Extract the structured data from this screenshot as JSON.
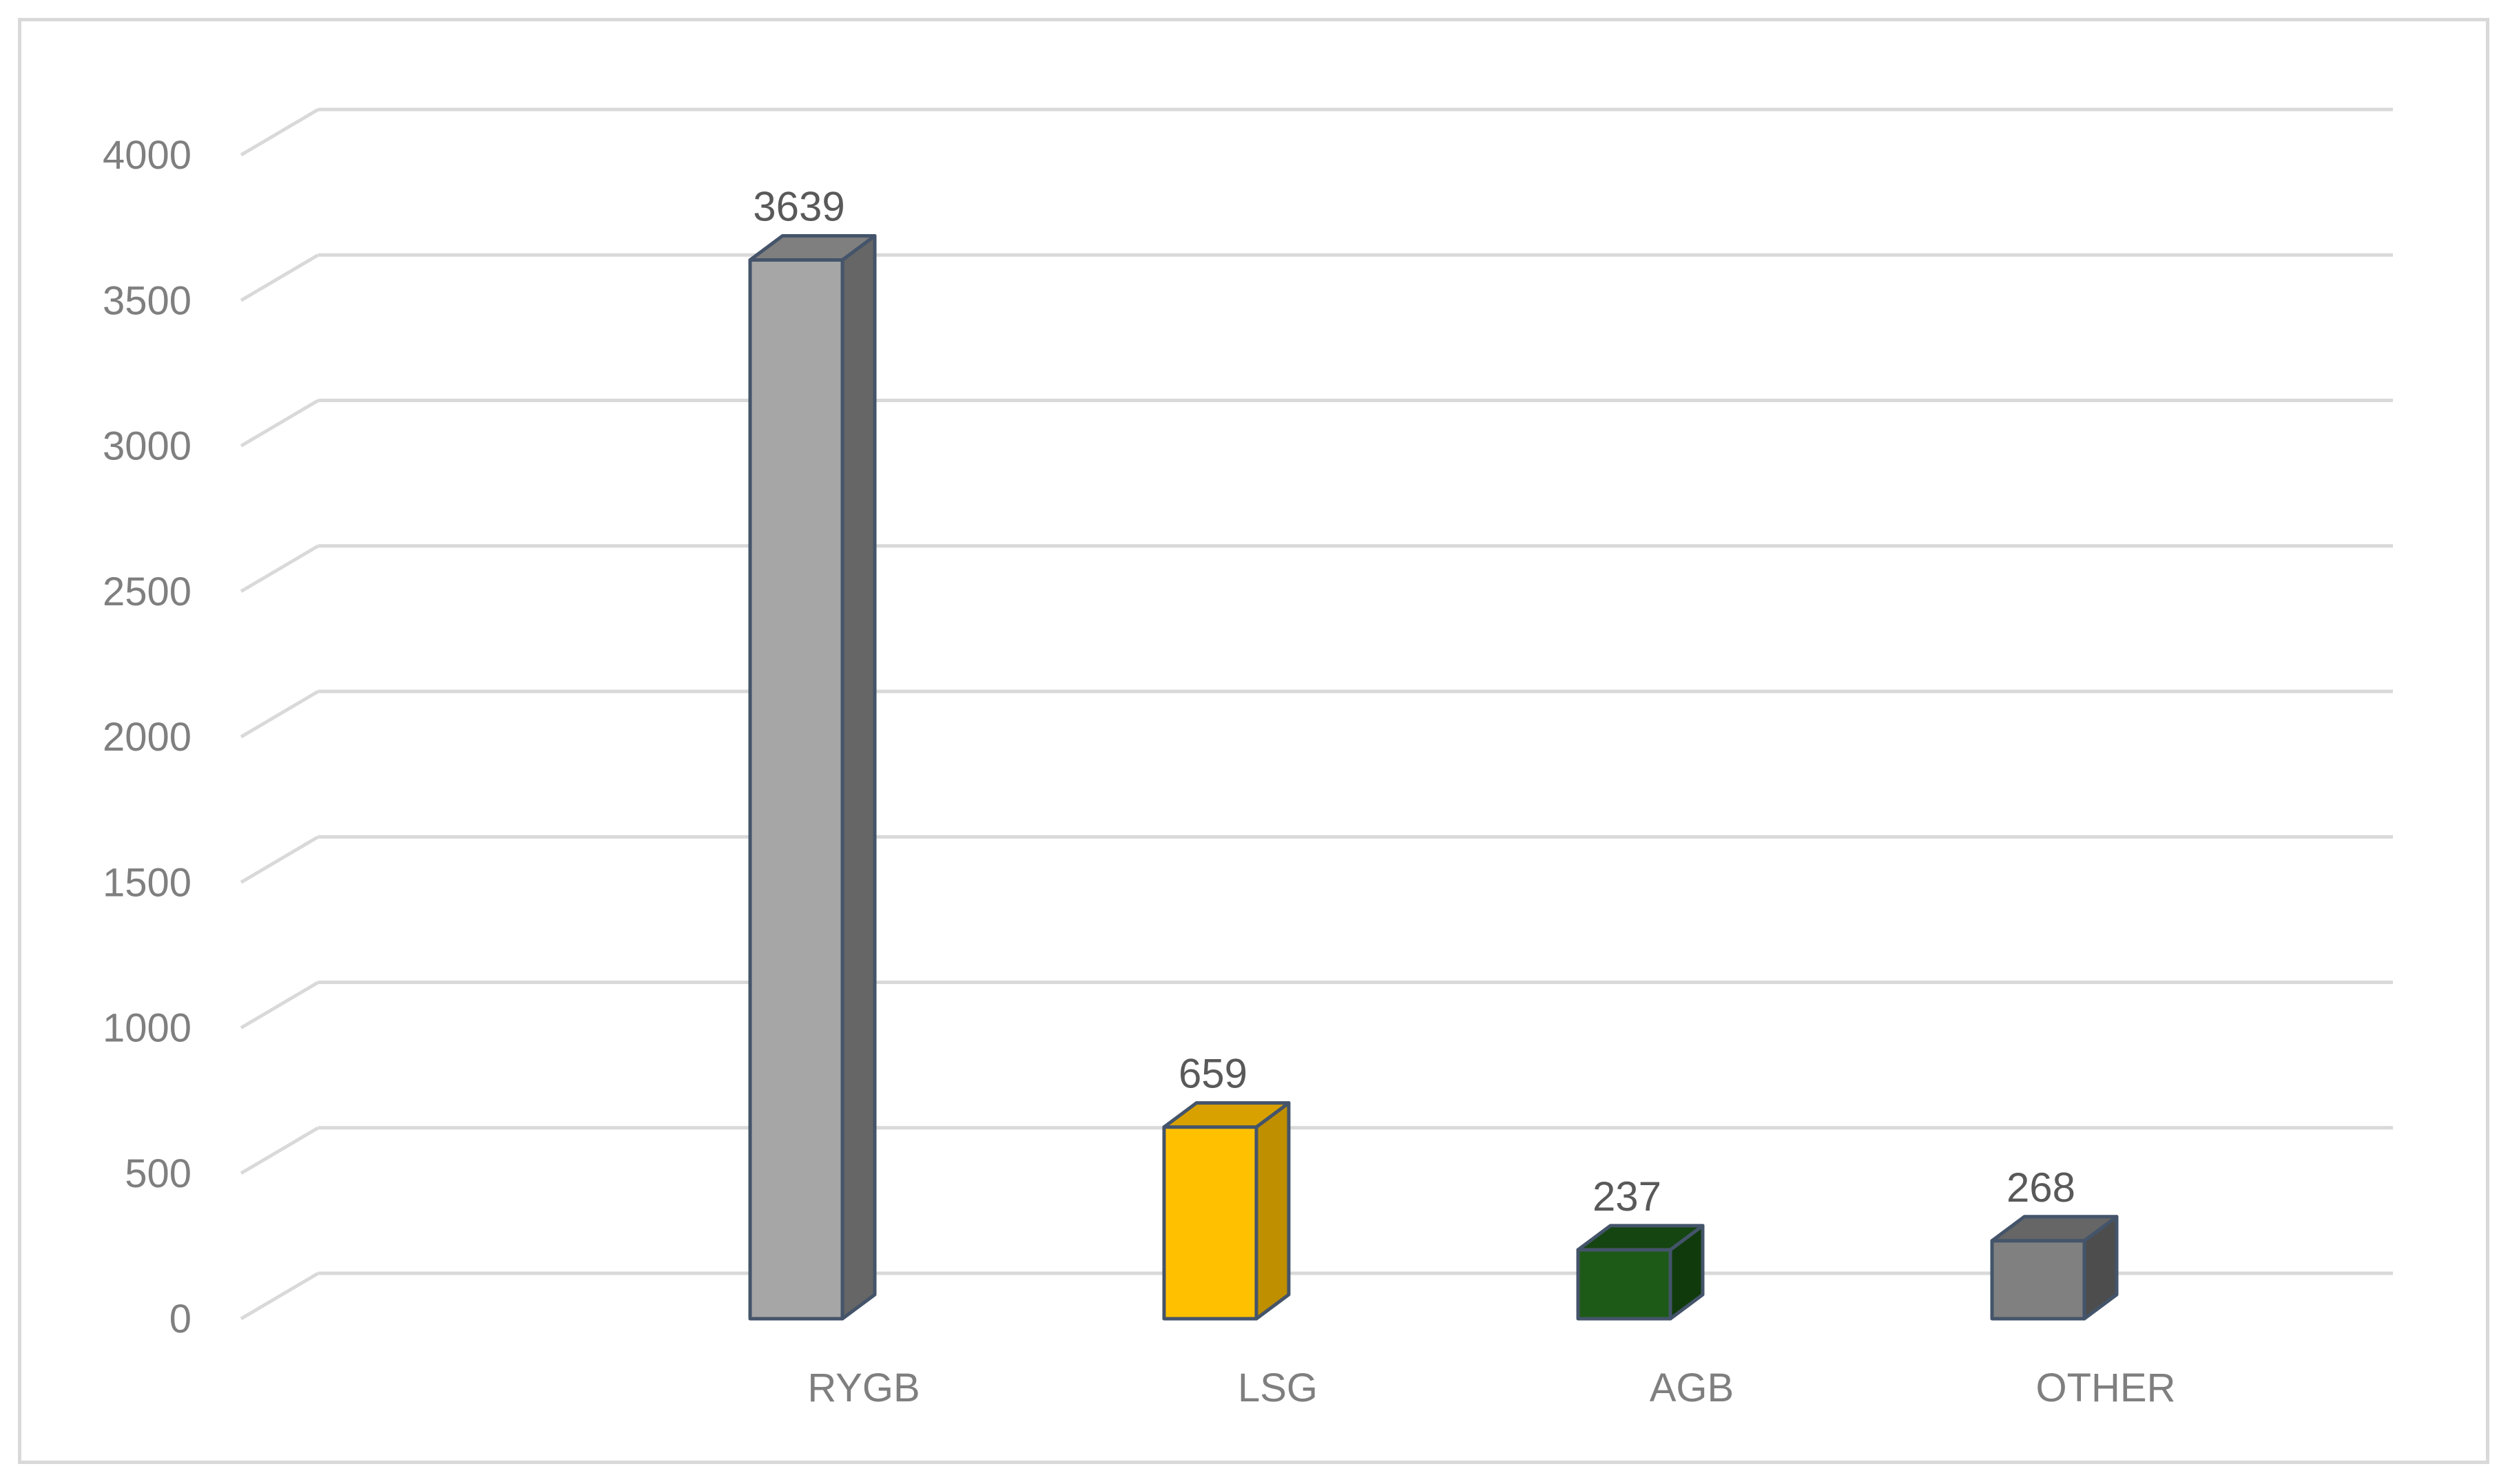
{
  "chart_data": {
    "type": "bar",
    "style": "3d-column",
    "categories": [
      "RYGB",
      "LSG",
      "AGB",
      "OTHER"
    ],
    "values": [
      3639,
      659,
      237,
      268
    ],
    "value_labels": [
      "3639",
      "659",
      "237",
      "268"
    ],
    "ylim": [
      0,
      4000
    ],
    "yticks": [
      "0",
      "500",
      "1000",
      "1500",
      "2000",
      "2500",
      "3000",
      "3500",
      "4000"
    ],
    "grid": true,
    "legend": "none",
    "title": "",
    "xlabel": "",
    "ylabel": "",
    "colors": [
      {
        "front": "#a6a6a6",
        "side": "#666666",
        "top": "#7f7f7f"
      },
      {
        "front": "#ffc000",
        "side": "#bf8f00",
        "top": "#d9a100"
      },
      {
        "front": "#1e5a17",
        "side": "#103a0c",
        "top": "#154510"
      },
      {
        "front": "#808080",
        "side": "#4d4d4d",
        "top": "#666666"
      }
    ],
    "outline_color": "#44546a",
    "gridline_color": "#d9d9d9"
  }
}
